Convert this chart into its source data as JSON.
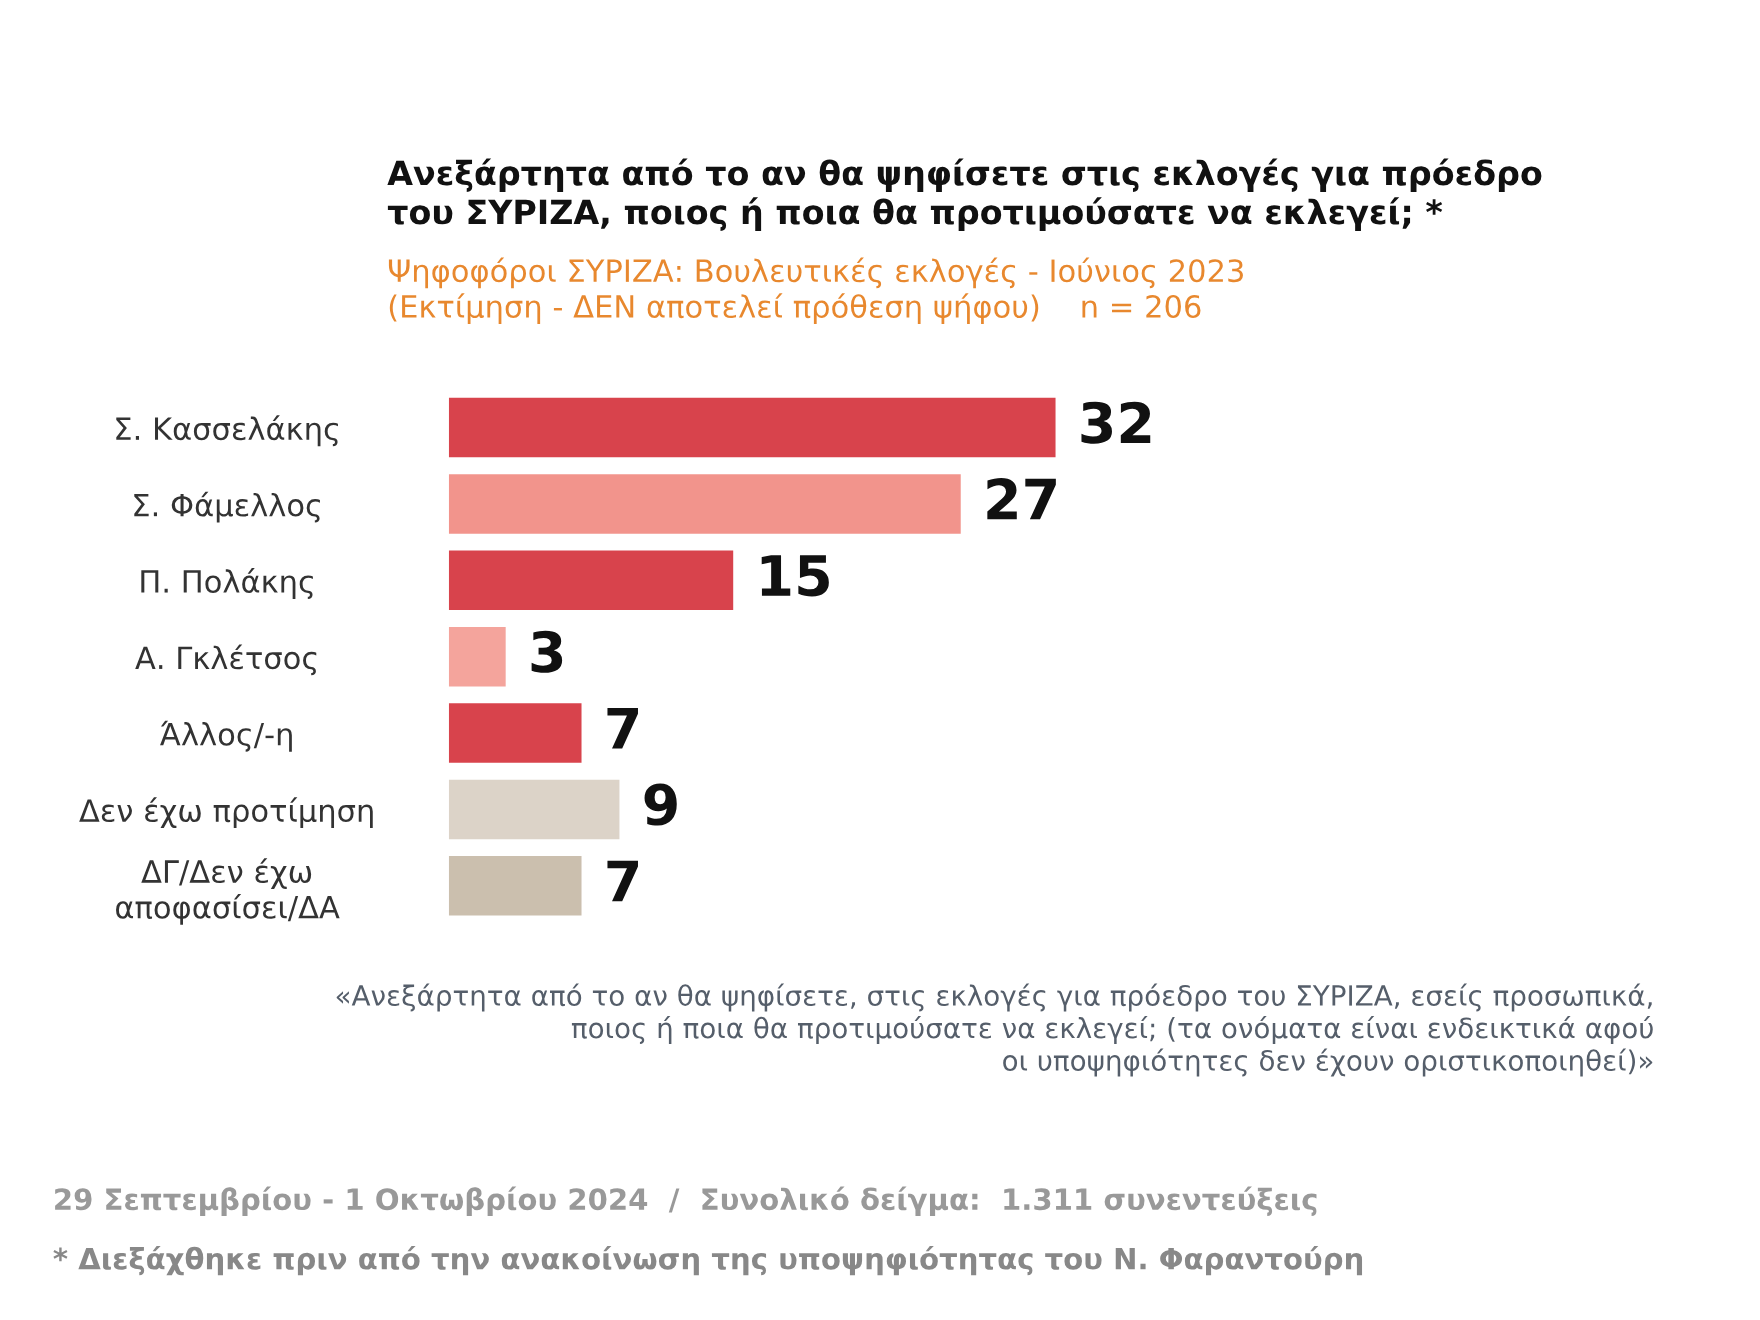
{
  "chart_data": {
    "type": "bar",
    "orientation": "horizontal",
    "title": "Ανεξάρτητα από το αν θα ψηφίσετε στις εκλογές για πρόεδρο\nτου ΣΥΡΙΖΑ, ποιος ή ποια θα προτιμούσατε να εκλεγεί; *",
    "subtitle": "Ψηφοφόροι ΣΥΡΙΖΑ: Βουλευτικές εκλογές - Ιούνιος 2023\n(Εκτίμηση - ΔΕΝ αποτελεί πρόθεση ψήφου)    n = 206",
    "categories": [
      "Σ. Κασσελάκης",
      "Σ. Φάμελλος",
      "Π. Πολάκης",
      "Α. Γκλέτσος",
      "Άλλος/-η",
      "Δεν έχω προτίμηση",
      "ΔΓ/Δεν έχω\nαποφασίσει/ΔΑ"
    ],
    "values": [
      32,
      27,
      15,
      3,
      7,
      9,
      7
    ],
    "colors": [
      "#d8434c",
      "#f2948c",
      "#d8434c",
      "#f4a49c",
      "#d8434c",
      "#dcd3c8",
      "#cbbfae"
    ],
    "data_labels": true,
    "annotations": [
      "«Ανεξάρτητα από το αν θα ψηφίσετε, στις εκλογές για πρόεδρο του ΣΥΡΙΖΑ, εσείς προσωπικά,\nποιος ή ποια θα προτιμούσατε να εκλεγεί; (τα ονόματα είναι ενδεικτικά αφού\nοι υποψηφιότητες δεν έχουν οριστικοποιηθεί)»",
      "29 Σεπτεμβρίου - 1 Οκτωβρίου 2024  /  Συνολικό δείγμα:  1.311 συνεντεύξεις",
      "* Διεξάχθηκε πριν από την ανακοίνωση της υποψηφιότητας του Ν. Φαραντούρη"
    ]
  }
}
